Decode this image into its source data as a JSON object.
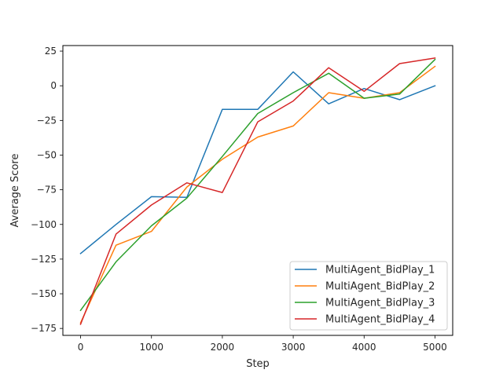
{
  "chart_data": {
    "type": "line",
    "title": "",
    "xlabel": "Step",
    "ylabel": "Average Score",
    "xlim": [
      -250,
      5250
    ],
    "ylim": [
      -180,
      29
    ],
    "x_ticks": [
      0,
      1000,
      2000,
      3000,
      4000,
      5000
    ],
    "y_ticks": [
      25,
      0,
      -25,
      -50,
      -75,
      -100,
      -125,
      -150,
      -175
    ],
    "x_tick_labels": [
      "0",
      "1000",
      "2000",
      "3000",
      "4000",
      "5000"
    ],
    "y_tick_labels": [
      "25",
      "0",
      "−25",
      "−50",
      "−75",
      "−100",
      "−125",
      "−150",
      "−175"
    ],
    "grid": false,
    "legend_position": "lower-right",
    "x": [
      0,
      500,
      1000,
      1500,
      2000,
      2500,
      3000,
      3500,
      4000,
      4500,
      5000
    ],
    "series": [
      {
        "name": "MultiAgent_BidPlay_1",
        "color": "#1f77b4",
        "values": [
          -121,
          -100,
          -80,
          -80.5,
          -17,
          -17,
          10,
          -13,
          -2,
          -10,
          0
        ]
      },
      {
        "name": "MultiAgent_BidPlay_2",
        "color": "#ff7f0e",
        "values": [
          -171,
          -115,
          -105,
          -73,
          -53,
          -37,
          -29,
          -5,
          -9,
          -5,
          14
        ]
      },
      {
        "name": "MultiAgent_BidPlay_3",
        "color": "#2ca02c",
        "values": [
          -162,
          -127,
          -101,
          -81,
          -51,
          -20,
          -5,
          9,
          -9,
          -6,
          19
        ]
      },
      {
        "name": "MultiAgent_BidPlay_4",
        "color": "#d62728",
        "values": [
          -172,
          -107,
          -86,
          -70,
          -77,
          -26,
          -11,
          13,
          -4,
          16,
          20
        ]
      }
    ]
  }
}
